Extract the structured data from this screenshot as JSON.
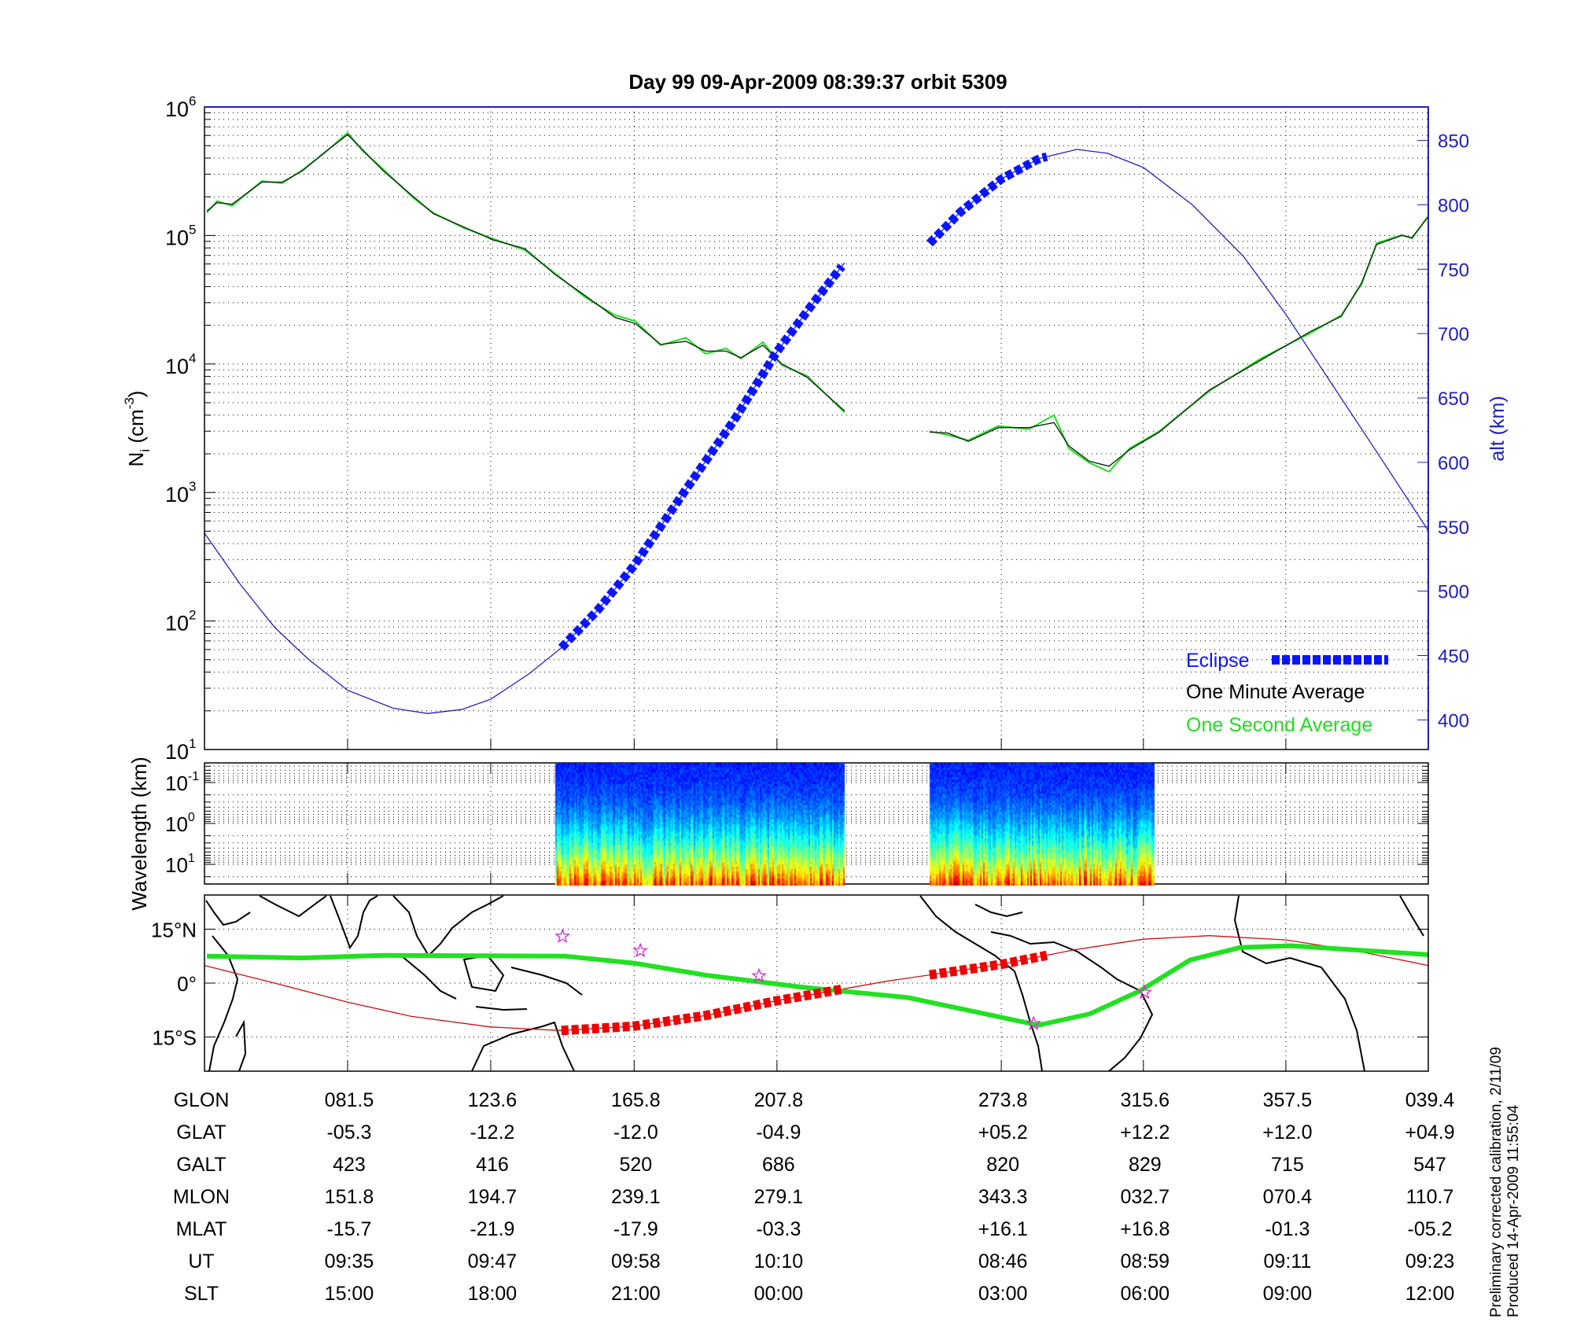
{
  "title": "Day 99  09-Apr-2009 08:39:37   orbit 5309",
  "footer": {
    "line1": "Preliminary corrected calibration, 2/11/09",
    "line2": "Produced 14-Apr-2009 11:55:04"
  },
  "colors": {
    "eclipse": "#0a14ff",
    "one_minute": "#102a10",
    "one_second": "#22dd22",
    "altitude": "#2020c0",
    "track": "#cc1010",
    "track_eclipse": "#ee0000",
    "dip_equator": "#22e022",
    "station": "#dd22dd"
  },
  "chart_data": [
    {
      "type": "line",
      "title": "Day 99  09-Apr-2009 08:39:37   orbit 5309",
      "xlabel": "",
      "x_units": "GLON (deg, continuous)",
      "xlim": [
        39.4,
        399.4
      ],
      "x_ticks": [
        81.5,
        123.6,
        165.8,
        207.8,
        273.8,
        315.6,
        357.5,
        399.4
      ],
      "ylabel": {
        "main": "N",
        "sub": "i",
        "unit_open": " (cm",
        "unit_exp": "-3",
        "unit_close": ")"
      },
      "yscale": "log",
      "ylim": [
        10,
        1000000
      ],
      "y_ticks": [
        {
          "base": "10",
          "exp": "6"
        },
        {
          "base": "10",
          "exp": "5"
        },
        {
          "base": "10",
          "exp": "4"
        },
        {
          "base": "10",
          "exp": "3"
        },
        {
          "base": "10",
          "exp": "2"
        },
        {
          "base": "10",
          "exp": "1"
        }
      ],
      "y2label": "alt (km)",
      "y2lim": [
        377,
        876
      ],
      "y2_ticks": [
        "400",
        "450",
        "500",
        "550",
        "600",
        "650",
        "700",
        "750",
        "800",
        "850"
      ],
      "grid": true,
      "legend": {
        "placement": "bottom-right",
        "entries": [
          "Eclipse",
          "One Minute Average",
          "One Second Average"
        ]
      },
      "series": [
        {
          "name": "One Minute Average",
          "segments": [
            [
              [
                40.1,
                155000
              ],
              [
                43.1,
                180000
              ],
              [
                47.5,
                175000
              ],
              [
                56.3,
                260000
              ],
              [
                62.3,
                260000
              ],
              [
                68.3,
                320000
              ],
              [
                74.1,
                430000
              ],
              [
                81.5,
                610000
              ],
              [
                86.1,
                460000
              ],
              [
                91.9,
                320000
              ],
              [
                100.9,
                200000
              ],
              [
                106.7,
                148000
              ],
              [
                115.8,
                116000
              ],
              [
                124.5,
                92000
              ],
              [
                133.6,
                79000
              ],
              [
                142.4,
                50000
              ],
              [
                151.4,
                34000
              ],
              [
                160.2,
                23000
              ],
              [
                166.2,
                20600
              ],
              [
                173.6,
                14200
              ],
              [
                181.0,
                15000
              ],
              [
                186.8,
                12600
              ],
              [
                192.8,
                12600
              ],
              [
                197.2,
                11200
              ],
              [
                203.7,
                14000
              ],
              [
                209.2,
                10000
              ],
              [
                216.6,
                7900
              ],
              [
                227.7,
                4300
              ]
            ],
            [
              [
                252.7,
                2950
              ],
              [
                258.1,
                2900
              ],
              [
                264.1,
                2500
              ],
              [
                272.9,
                3200
              ],
              [
                281.9,
                3200
              ],
              [
                289.3,
                3500
              ],
              [
                293.7,
                2300
              ],
              [
                299.7,
                1750
              ],
              [
                305.5,
                1600
              ],
              [
                311.5,
                2150
              ],
              [
                320.3,
                2950
              ],
              [
                335.1,
                6300
              ],
              [
                350.1,
                10700
              ],
              [
                364.9,
                18000
              ],
              [
                373.8,
                23500
              ],
              [
                379.8,
                43000
              ],
              [
                384.2,
                85000
              ],
              [
                391.6,
                100000
              ],
              [
                394.6,
                96000
              ],
              [
                399.4,
                140000
              ]
            ]
          ]
        },
        {
          "name": "One Second Average",
          "segments": [
            [
              [
                40.1,
                150000
              ],
              [
                43.1,
                185000
              ],
              [
                47.5,
                170000
              ],
              [
                56.3,
                265000
              ],
              [
                62.3,
                255000
              ],
              [
                68.3,
                325000
              ],
              [
                74.1,
                425000
              ],
              [
                81.5,
                630000
              ],
              [
                86.1,
                450000
              ],
              [
                91.9,
                330000
              ],
              [
                100.9,
                195000
              ],
              [
                106.7,
                150000
              ],
              [
                115.8,
                114000
              ],
              [
                124.5,
                94000
              ],
              [
                133.6,
                77000
              ],
              [
                142.4,
                51000
              ],
              [
                151.4,
                33000
              ],
              [
                160.2,
                24000
              ],
              [
                166.2,
                21500
              ],
              [
                173.6,
                14000
              ],
              [
                181.0,
                16000
              ],
              [
                186.8,
                12000
              ],
              [
                192.8,
                13200
              ],
              [
                197.2,
                11000
              ],
              [
                203.7,
                14800
              ],
              [
                209.2,
                9800
              ],
              [
                216.6,
                8100
              ],
              [
                227.7,
                4200
              ]
            ],
            [
              [
                252.7,
                3000
              ],
              [
                258.1,
                2800
              ],
              [
                264.1,
                2550
              ],
              [
                272.9,
                3300
              ],
              [
                281.9,
                3100
              ],
              [
                289.3,
                4000
              ],
              [
                293.7,
                2200
              ],
              [
                299.7,
                1700
              ],
              [
                305.5,
                1450
              ],
              [
                311.5,
                2200
              ],
              [
                320.3,
                3000
              ],
              [
                335.1,
                6200
              ],
              [
                350.1,
                11000
              ],
              [
                364.9,
                17500
              ],
              [
                373.8,
                24000
              ],
              [
                379.8,
                42000
              ],
              [
                384.2,
                87000
              ],
              [
                391.6,
                101000
              ],
              [
                394.6,
                95000
              ],
              [
                399.4,
                142000
              ]
            ]
          ]
        },
        {
          "name": "Altitude",
          "axis": "right",
          "segments": [
            [
              [
                39.4,
                545
              ],
              [
                50,
                505
              ],
              [
                60,
                472
              ],
              [
                70,
                447
              ],
              [
                81.5,
                423
              ],
              [
                95,
                409
              ],
              [
                105,
                405
              ],
              [
                115,
                408
              ],
              [
                123.6,
                416
              ],
              [
                135,
                436
              ],
              [
                144.4,
                456
              ],
              [
                155,
                485
              ],
              [
                165.8,
                520
              ],
              [
                180,
                575
              ],
              [
                195,
                632
              ],
              [
                207.8,
                686
              ],
              [
                218,
                722
              ],
              [
                227.7,
                755
              ]
            ],
            [
              [
                252.7,
                770
              ],
              [
                262,
                795
              ],
              [
                273.8,
                820
              ],
              [
                285,
                836
              ],
              [
                296,
                843
              ],
              [
                305,
                840
              ],
              [
                315.6,
                829
              ],
              [
                330,
                800
              ],
              [
                345,
                760
              ],
              [
                357.5,
                715
              ],
              [
                370,
                665
              ],
              [
                385,
                605
              ],
              [
                399.4,
                547
              ]
            ]
          ]
        },
        {
          "name": "Eclipse",
          "axis": "right",
          "ranges": [
            [
              144.4,
              227.7
            ],
            [
              252.7,
              287.7
            ]
          ]
        }
      ]
    },
    {
      "type": "heatmap",
      "ylabel": "Wavelength (km)",
      "yscale": "log",
      "y_reversed": true,
      "y_ticks": [
        {
          "base": "10",
          "exp": "-1"
        },
        {
          "base": "10",
          "exp": "0"
        },
        {
          "base": "10",
          "exp": "1"
        }
      ],
      "ylim": [
        0.033,
        30
      ],
      "data_ranges_glon": [
        [
          142.6,
          227.7
        ],
        [
          252.7,
          319.0
        ]
      ],
      "colormap": "jet"
    },
    {
      "type": "scatter",
      "kind": "map",
      "xlim": [
        39.4,
        399.4
      ],
      "ylim": [
        -24.5,
        24.5
      ],
      "y_ticks": [
        "15°N",
        "0°",
        "15°S"
      ],
      "y_tick_values": [
        15,
        0,
        -15
      ],
      "track": [
        [
          39.4,
          4.9
        ],
        [
          60,
          0
        ],
        [
          81.5,
          -5.3
        ],
        [
          100,
          -9.2
        ],
        [
          123.6,
          -12.2
        ],
        [
          144,
          -13.2
        ],
        [
          165.8,
          -12.0
        ],
        [
          187,
          -9.0
        ],
        [
          207.8,
          -4.9
        ],
        [
          240,
          0.5
        ],
        [
          273.8,
          5.2
        ],
        [
          295,
          9.2
        ],
        [
          315.6,
          12.2
        ],
        [
          335,
          13.2
        ],
        [
          357.5,
          12.0
        ],
        [
          378,
          9.0
        ],
        [
          399.4,
          4.9
        ]
      ],
      "track_eclipse_ranges": [
        [
          144.4,
          227.7
        ],
        [
          252.7,
          287.7
        ]
      ],
      "dip_equator": [
        [
          40.1,
          7.5
        ],
        [
          68.3,
          7.0
        ],
        [
          91.9,
          7.7
        ],
        [
          145.4,
          7.5
        ],
        [
          166.2,
          5.5
        ],
        [
          186.8,
          2.2
        ],
        [
          216.6,
          -1.3
        ],
        [
          246.2,
          -4.0
        ],
        [
          284.7,
          -11.7
        ],
        [
          299.7,
          -8.6
        ],
        [
          314.5,
          -2.2
        ],
        [
          329.3,
          6.4
        ],
        [
          344.1,
          9.9
        ],
        [
          358.9,
          10.4
        ],
        [
          399.4,
          7.9
        ]
      ],
      "stations": [
        [
          144.7,
          13.0
        ],
        [
          167.6,
          9.0
        ],
        [
          202.5,
          2.0
        ],
        [
          283.3,
          -11.3
        ],
        [
          315.9,
          -2.6
        ]
      ]
    }
  ],
  "table": {
    "rows": [
      {
        "label": "GLON",
        "values": [
          "081.5",
          "123.6",
          "165.8",
          "207.8",
          "273.8",
          "315.6",
          "357.5",
          "039.4"
        ]
      },
      {
        "label": "GLAT",
        "values": [
          "-05.3",
          "-12.2",
          "-12.0",
          "-04.9",
          "+05.2",
          "+12.2",
          "+12.0",
          "+04.9"
        ]
      },
      {
        "label": "GALT",
        "values": [
          "423",
          "416",
          "520",
          "686",
          "820",
          "829",
          "715",
          "547"
        ]
      },
      {
        "label": "MLON",
        "values": [
          "151.8",
          "194.7",
          "239.1",
          "279.1",
          "343.3",
          "032.7",
          "070.4",
          "110.7"
        ]
      },
      {
        "label": "MLAT",
        "values": [
          "-15.7",
          "-21.9",
          "-17.9",
          "-03.3",
          "+16.1",
          "+16.8",
          "-01.3",
          "-05.2"
        ]
      },
      {
        "label": "UT",
        "values": [
          "09:35",
          "09:47",
          "09:58",
          "10:10",
          "08:46",
          "08:59",
          "09:11",
          "09:23"
        ]
      },
      {
        "label": "SLT",
        "values": [
          "15:00",
          "18:00",
          "21:00",
          "00:00",
          "03:00",
          "06:00",
          "09:00",
          "12:00"
        ]
      }
    ]
  }
}
